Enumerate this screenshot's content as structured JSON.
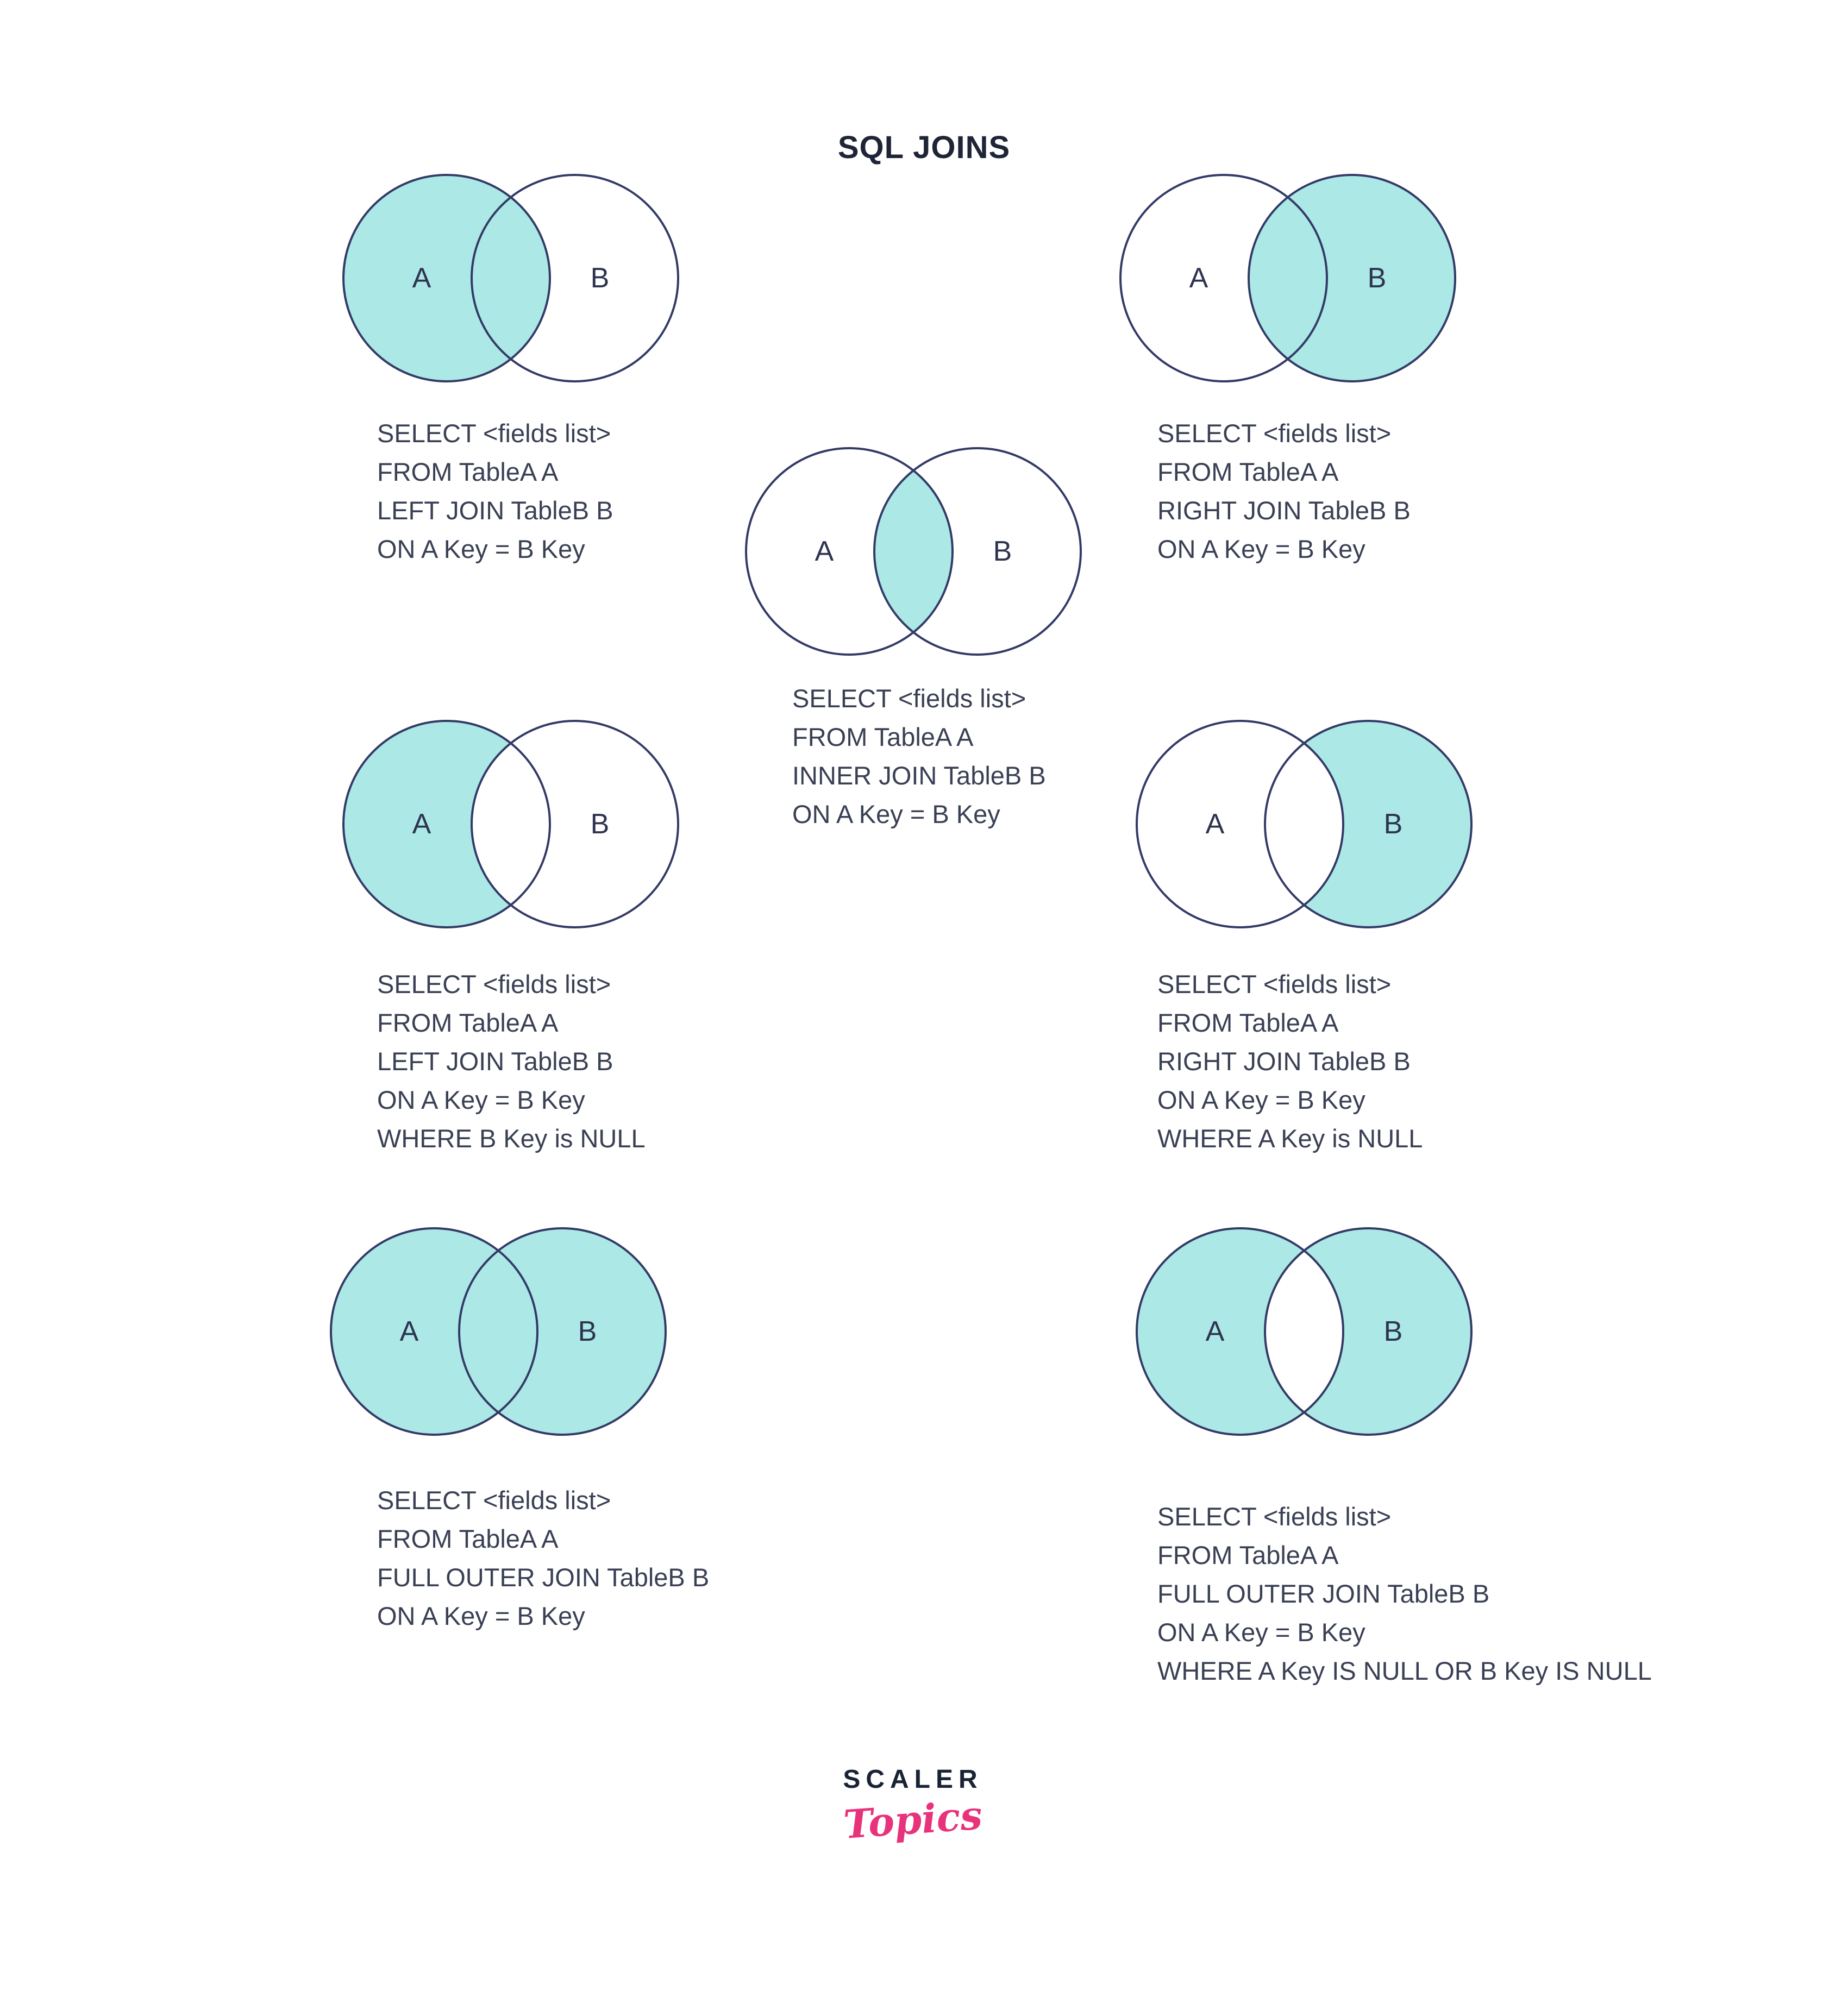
{
  "title": "SQL JOINS",
  "colors": {
    "fill": "#abe8e6",
    "stroke": "#333a66",
    "label": "#2e3350",
    "text": "#3a4054",
    "brand_dark": "#1a2335",
    "brand_pink": "#e8327c",
    "background": "#ffffff"
  },
  "diagrams": [
    {
      "name": "left-join",
      "a": "A",
      "b": "B",
      "layers": [
        "A"
      ],
      "sql": "SELECT <fields list>\nFROM TableA A\nLEFT JOIN TableB B\nON A Key = B Key"
    },
    {
      "name": "right-join",
      "a": "A",
      "b": "B",
      "layers": [
        "B"
      ],
      "sql": "SELECT <fields list>\nFROM TableA A\nRIGHT JOIN TableB B\nON A Key = B Key"
    },
    {
      "name": "inner-join",
      "a": "A",
      "b": "B",
      "layers": [
        "lens"
      ],
      "sql": "SELECT <fields list>\nFROM TableA A\nINNER JOIN TableB B\nON A Key = B Key"
    },
    {
      "name": "left-join-where-b-null",
      "a": "A",
      "b": "B",
      "layers": [
        "A",
        "lens-white"
      ],
      "sql": "SELECT <fields list>\nFROM TableA A\nLEFT JOIN TableB B\nON A Key = B Key\nWHERE B Key is NULL"
    },
    {
      "name": "right-join-where-a-null",
      "a": "A",
      "b": "B",
      "layers": [
        "B",
        "lens-white"
      ],
      "sql": "SELECT <fields list>\nFROM TableA A\nRIGHT JOIN TableB B\nON A Key = B Key\nWHERE A Key is NULL"
    },
    {
      "name": "full-outer-join",
      "a": "A",
      "b": "B",
      "layers": [
        "A",
        "B"
      ],
      "sql": "SELECT <fields list>\nFROM TableA A\nFULL OUTER JOIN TableB B\nON A Key = B Key"
    },
    {
      "name": "full-outer-join-where-null",
      "a": "A",
      "b": "B",
      "layers": [
        "A",
        "B",
        "lens-white"
      ],
      "sql": "SELECT <fields list>\nFROM TableA A\nFULL OUTER JOIN TableB B\nON A Key = B Key\nWHERE A Key IS NULL OR B Key IS NULL"
    }
  ],
  "logo": {
    "brand": "SCALER",
    "sub": "Topics"
  }
}
